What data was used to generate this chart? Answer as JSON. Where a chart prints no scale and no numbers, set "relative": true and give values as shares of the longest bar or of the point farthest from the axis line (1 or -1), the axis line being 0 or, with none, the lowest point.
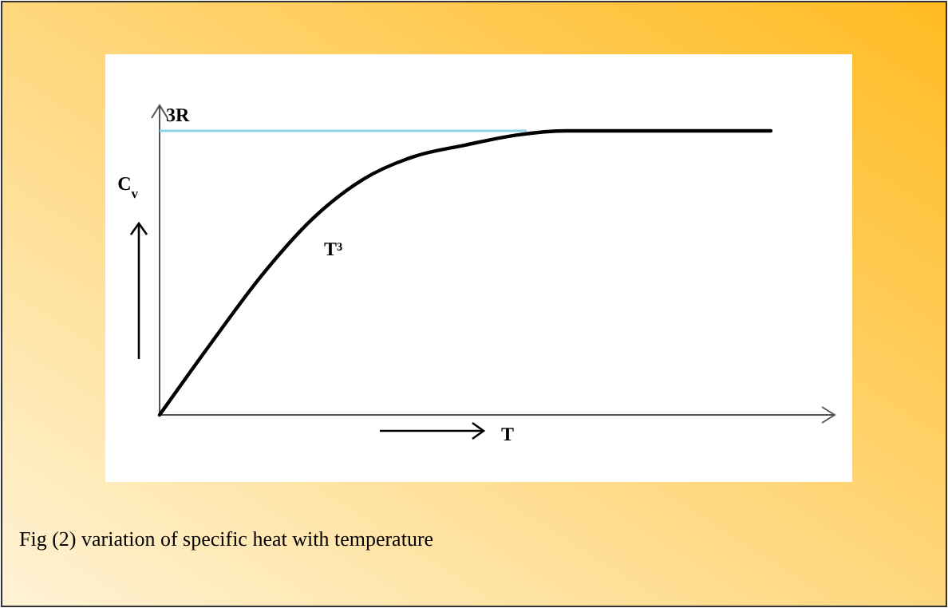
{
  "chart_data": {
    "type": "line",
    "relative": true,
    "xlabel": "T",
    "ylabel": "C$_{v}$",
    "categories": [
      null,
      null,
      null,
      null,
      null,
      null,
      null,
      null,
      null,
      null,
      null,
      null,
      null
    ],
    "series": [
      {
        "color": "#000000",
        "values": [
          0,
          0.25,
          0.49,
          0.69,
          0.83,
          0.91,
          0.95,
          0.985,
          1,
          1,
          1,
          1,
          1
        ]
      }
    ],
    "ref_lines": [
      {
        "axis": "y",
        "value": 1,
        "label": "3R",
        "color": "#8fd3e8"
      }
    ],
    "annotations": [
      "T³",
      "Fig (2) variation of specific heat with temperature"
    ],
    "marker": "none",
    "line_style": "solid",
    "grid": false
  }
}
